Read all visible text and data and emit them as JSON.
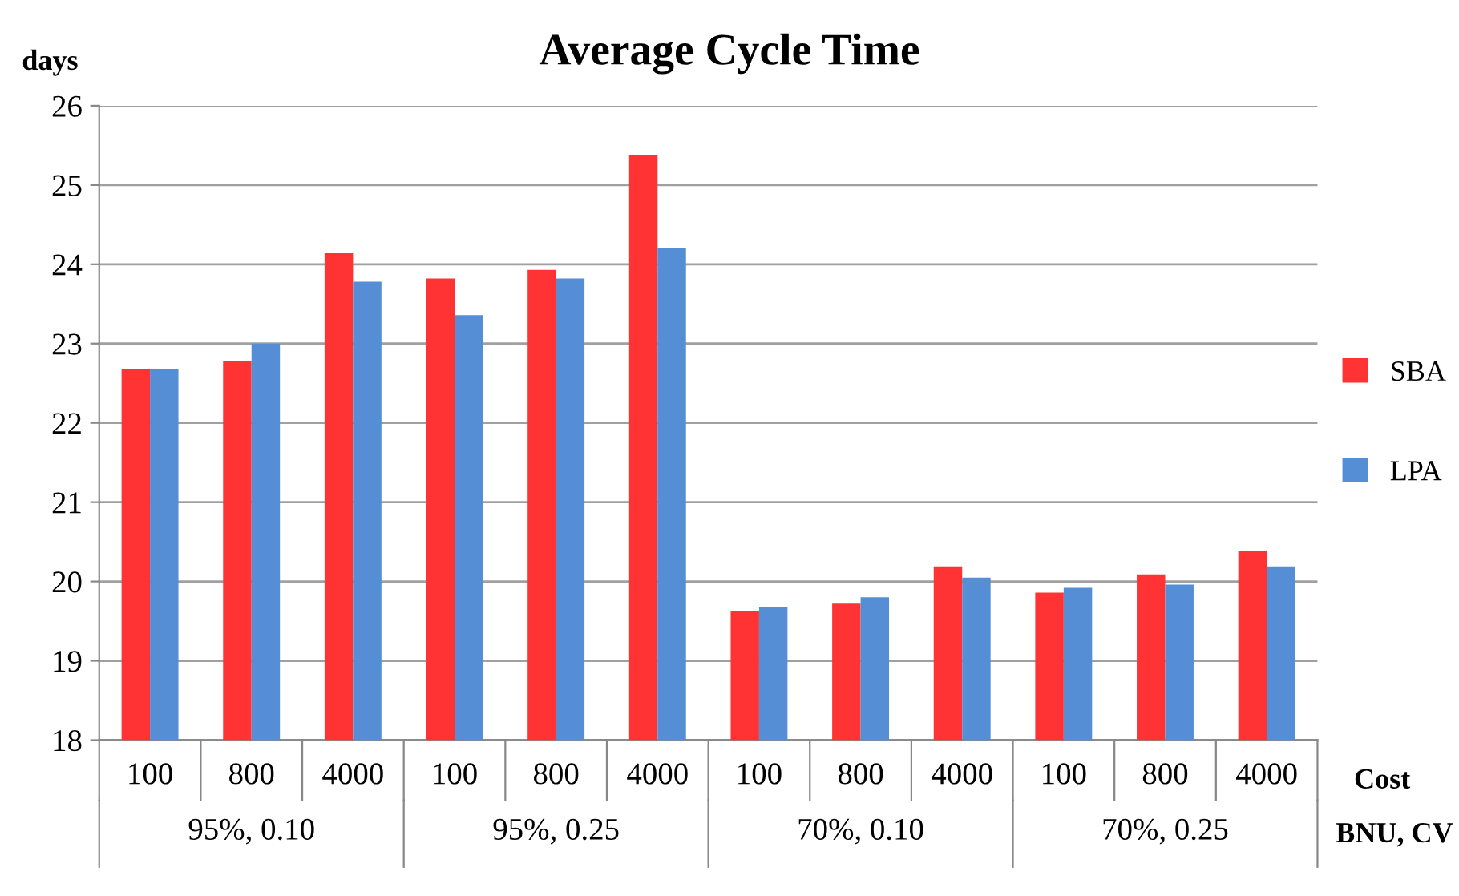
{
  "chart_data": {
    "type": "bar",
    "title": "Average Cycle Time",
    "ylabel": "days",
    "xlabel": "Cost",
    "categories": [
      "100",
      "800",
      "4000",
      "100",
      "800",
      "4000",
      "100",
      "800",
      "4000",
      "100",
      "800",
      "4000"
    ],
    "series": [
      {
        "name": "SBA",
        "color": "#ff3333",
        "values": [
          22.68,
          22.78,
          24.14,
          23.82,
          23.93,
          25.38,
          19.63,
          19.72,
          20.19,
          19.86,
          20.09,
          20.38
        ]
      },
      {
        "name": "LPA",
        "color": "#558ed5",
        "values": [
          22.68,
          23.0,
          23.78,
          23.36,
          23.82,
          24.2,
          19.68,
          19.8,
          20.05,
          19.92,
          19.96,
          20.19
        ]
      }
    ],
    "annotations": [
      "95%, 0.10",
      "95%, 0.25",
      "70%, 0.10",
      "70%, 0.25",
      "BNU, CV"
    ],
    "ylim": [
      18,
      26
    ],
    "yticks": [
      18,
      19,
      20,
      21,
      22,
      23,
      24,
      25,
      26
    ],
    "grid": "y",
    "legend": "right"
  }
}
